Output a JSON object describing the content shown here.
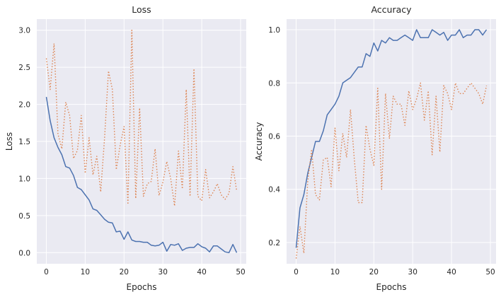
{
  "colors": {
    "panel_background": "#eaeaf2",
    "series_1": "#4c72b0",
    "series_2": "#dd8452"
  },
  "chart_data": [
    {
      "type": "line",
      "title": "Loss",
      "xlabel": "Epochs",
      "ylabel": "Loss",
      "xlim": [
        -2.45,
        51.45
      ],
      "ylim": [
        -0.15,
        3.15
      ],
      "xticks": [
        0,
        10,
        20,
        30,
        40,
        50
      ],
      "yticks": [
        0.0,
        0.5,
        1.0,
        1.5,
        2.0,
        2.5,
        3.0
      ],
      "ytick_labels": [
        "0.0",
        "0.5",
        "1.0",
        "1.5",
        "2.0",
        "2.5",
        "3.0"
      ],
      "grid": true,
      "x": [
        0,
        1,
        2,
        3,
        4,
        5,
        6,
        7,
        8,
        9,
        10,
        11,
        12,
        13,
        14,
        15,
        16,
        17,
        18,
        19,
        20,
        21,
        22,
        23,
        24,
        25,
        26,
        27,
        28,
        29,
        30,
        31,
        32,
        33,
        34,
        35,
        36,
        37,
        38,
        39,
        40,
        41,
        42,
        43,
        44,
        45,
        46,
        47,
        48,
        49
      ],
      "series": [
        {
          "style": "solid",
          "color": "#4c72b0",
          "values": [
            2.1,
            1.78,
            1.55,
            1.42,
            1.32,
            1.16,
            1.14,
            1.04,
            0.88,
            0.85,
            0.78,
            0.71,
            0.59,
            0.57,
            0.51,
            0.45,
            0.41,
            0.4,
            0.28,
            0.29,
            0.18,
            0.28,
            0.17,
            0.15,
            0.15,
            0.14,
            0.14,
            0.1,
            0.09,
            0.1,
            0.14,
            0.02,
            0.11,
            0.1,
            0.12,
            0.03,
            0.06,
            0.07,
            0.07,
            0.12,
            0.08,
            0.06,
            0.01,
            0.09,
            0.09,
            0.05,
            0.01,
            0.0,
            0.11,
            0.0
          ]
        },
        {
          "style": "dotted",
          "color": "#dd8452",
          "values": [
            2.62,
            2.2,
            2.82,
            1.6,
            1.4,
            2.03,
            1.85,
            1.27,
            1.38,
            1.85,
            1.07,
            1.55,
            1.05,
            1.3,
            0.82,
            1.55,
            2.45,
            2.2,
            1.12,
            1.45,
            1.7,
            0.65,
            3.0,
            0.73,
            1.95,
            0.76,
            0.93,
            0.96,
            1.4,
            0.77,
            0.95,
            1.23,
            1.0,
            0.63,
            1.37,
            0.86,
            2.2,
            0.76,
            2.48,
            0.76,
            0.7,
            1.12,
            0.74,
            0.82,
            0.93,
            0.78,
            0.72,
            0.8,
            1.16,
            0.83
          ]
        }
      ]
    },
    {
      "type": "line",
      "title": "Accuracy",
      "xlabel": "Epochs",
      "ylabel": "Accuracy",
      "xlim": [
        -2.45,
        51.45
      ],
      "ylim": [
        0.12,
        1.04
      ],
      "xticks": [
        0,
        10,
        20,
        30,
        40,
        50
      ],
      "yticks": [
        0.2,
        0.4,
        0.6,
        0.8,
        1.0
      ],
      "ytick_labels": [
        "0.2",
        "0.4",
        "0.6",
        "0.8",
        "1.0"
      ],
      "grid": true,
      "x": [
        0,
        1,
        2,
        3,
        4,
        5,
        6,
        7,
        8,
        9,
        10,
        11,
        12,
        13,
        14,
        15,
        16,
        17,
        18,
        19,
        20,
        21,
        22,
        23,
        24,
        25,
        26,
        27,
        28,
        29,
        30,
        31,
        32,
        33,
        34,
        35,
        36,
        37,
        38,
        39,
        40,
        41,
        42,
        43,
        44,
        45,
        46,
        47,
        48,
        49
      ],
      "series": [
        {
          "style": "solid",
          "color": "#4c72b0",
          "values": [
            0.18,
            0.33,
            0.38,
            0.46,
            0.52,
            0.58,
            0.58,
            0.62,
            0.68,
            0.7,
            0.72,
            0.75,
            0.8,
            0.81,
            0.82,
            0.84,
            0.86,
            0.86,
            0.91,
            0.9,
            0.95,
            0.92,
            0.96,
            0.95,
            0.97,
            0.96,
            0.96,
            0.97,
            0.98,
            0.97,
            0.96,
            1.0,
            0.97,
            0.97,
            0.97,
            1.0,
            0.99,
            0.98,
            0.99,
            0.96,
            0.98,
            0.98,
            1.0,
            0.97,
            0.98,
            0.98,
            1.0,
            1.0,
            0.98,
            1.0
          ]
        },
        {
          "style": "dotted",
          "color": "#dd8452",
          "values": [
            0.14,
            0.26,
            0.16,
            0.43,
            0.55,
            0.38,
            0.36,
            0.51,
            0.52,
            0.41,
            0.63,
            0.47,
            0.61,
            0.52,
            0.7,
            0.51,
            0.35,
            0.35,
            0.64,
            0.55,
            0.49,
            0.78,
            0.4,
            0.76,
            0.59,
            0.75,
            0.72,
            0.72,
            0.64,
            0.77,
            0.7,
            0.74,
            0.8,
            0.66,
            0.77,
            0.53,
            0.75,
            0.54,
            0.79,
            0.76,
            0.7,
            0.8,
            0.76,
            0.76,
            0.78,
            0.8,
            0.78,
            0.76,
            0.72,
            0.79
          ]
        }
      ]
    }
  ]
}
